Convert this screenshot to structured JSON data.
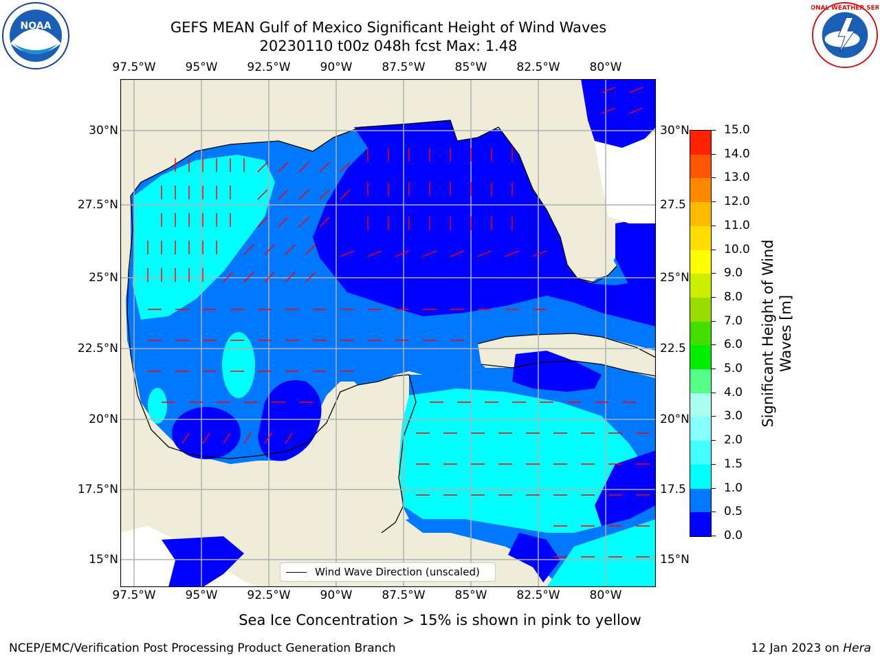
{
  "title_line1": "GEFS MEAN Gulf of Mexico Significant Height of Wind Waves",
  "title_line2": "20230110 t00z 048h fcst   Max: 1.48",
  "lon_ticks": [
    "97.5°W",
    "95°W",
    "92.5°W",
    "90°W",
    "87.5°W",
    "85°W",
    "82.5°W",
    "80°W"
  ],
  "lat_ticks": [
    "30°N",
    "27.5°N",
    "25°N",
    "22.5°N",
    "20°N",
    "17.5°N",
    "15°N"
  ],
  "lat_ticks_right": [
    "30°N",
    "27.5",
    "25°N",
    "22.5",
    "20°N",
    "17.5",
    "15°N"
  ],
  "legend_label": "Wind Wave Direction (unscaled)",
  "colorbar": {
    "title": "Significant Height of Wind Waves [m]",
    "labels": [
      "0.0",
      "0.5",
      "1.0",
      "1.5",
      "2.0",
      "3.0",
      "4.0",
      "5.0",
      "6.0",
      "7.0",
      "8.0",
      "9.0",
      "10.0",
      "11.0",
      "12.0",
      "13.0",
      "14.0",
      "15.0"
    ],
    "colors": [
      "#0000ff",
      "#0077ff",
      "#00ffff",
      "#44ffff",
      "#88ffff",
      "#aaffee",
      "#55ff88",
      "#00ee00",
      "#44dd00",
      "#99dd00",
      "#ccee00",
      "#ffff00",
      "#ffdd00",
      "#ffbb00",
      "#ff8800",
      "#ff5500",
      "#ff2200",
      "#ff0000"
    ]
  },
  "footnote": "Sea Ice Concentration > 15% is shown in pink to yellow",
  "credit_left": "NCEP/EMC/Verification Post Processing Product Generation Branch",
  "credit_date": "12 Jan 2023 on ",
  "credit_host": "Hera",
  "logos": {
    "left": "NOAA",
    "right": "NATIONAL WEATHER SERVICE"
  },
  "map_colors": {
    "land": "#efedda",
    "ocean_low": "#0000ff",
    "ocean_mid": "#0077ff",
    "ocean_high": "#00ffff",
    "arrow": "#ff0000",
    "grid": "#b0b0b0"
  }
}
